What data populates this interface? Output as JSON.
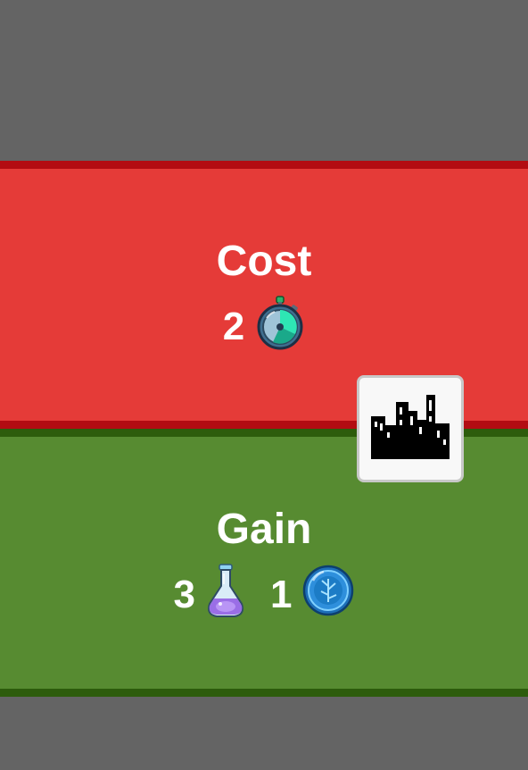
{
  "cost": {
    "title": "Cost",
    "items": [
      {
        "amount": "2",
        "icon": "stopwatch-icon"
      }
    ]
  },
  "gain": {
    "title": "Gain",
    "items": [
      {
        "amount": "3",
        "icon": "potion-flask-icon"
      },
      {
        "amount": "1",
        "icon": "blue-token-icon"
      }
    ]
  },
  "tile": {
    "icon": "city-skyline-icon"
  },
  "colors": {
    "background": "#646464",
    "cost_band": "#e53b38",
    "cost_border": "#b30c12",
    "gain_band": "#578b31",
    "gain_border": "#2d5c0c",
    "text": "#ffffff"
  }
}
